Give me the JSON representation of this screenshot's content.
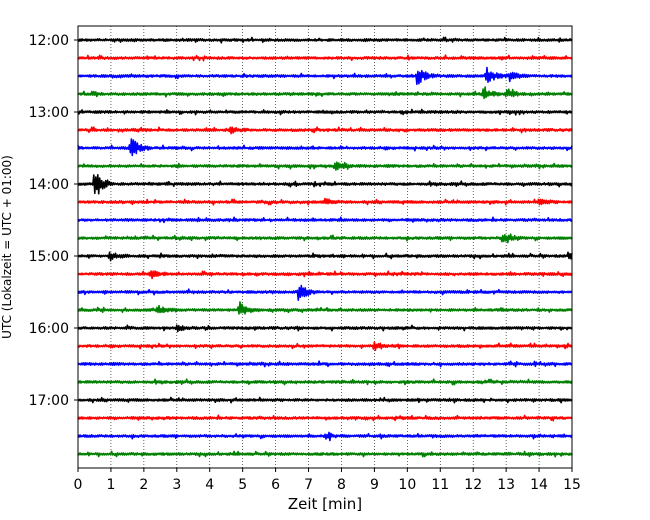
{
  "chart_data": {
    "type": "line",
    "title": "",
    "xlabel": "Zeit  [min]",
    "ylabel": "UTC (Lokalzeit = UTC + 01:00)",
    "xlim": [
      0,
      15
    ],
    "xticks": [
      0,
      1,
      2,
      3,
      4,
      5,
      6,
      7,
      8,
      9,
      10,
      11,
      12,
      13,
      14,
      15
    ],
    "ytick_labels": [
      "12:00",
      "13:00",
      "14:00",
      "15:00",
      "16:00",
      "17:00"
    ],
    "grid": "vertical dotted lines at each minute",
    "trace_interval_min": 15,
    "trace_colors": [
      "#000000",
      "#ff0000",
      "#0000ff",
      "#008000"
    ],
    "traces": [
      {
        "start": "12:00",
        "events": []
      },
      {
        "start": "12:15",
        "events": []
      },
      {
        "start": "12:30",
        "events": [
          {
            "t": 10.3,
            "amp": 1.0
          },
          {
            "t": 12.4,
            "amp": 1.4
          },
          {
            "t": 13.1,
            "amp": 0.5
          }
        ]
      },
      {
        "start": "12:45",
        "events": [
          {
            "t": 12.3,
            "amp": 0.8
          },
          {
            "t": 13.0,
            "amp": 0.6
          }
        ]
      },
      {
        "start": "13:00",
        "events": []
      },
      {
        "start": "13:15",
        "events": [
          {
            "t": 4.6,
            "amp": 0.4
          }
        ]
      },
      {
        "start": "13:30",
        "events": [
          {
            "t": 1.6,
            "amp": 1.2
          }
        ]
      },
      {
        "start": "13:45",
        "events": [
          {
            "t": 7.8,
            "amp": 0.5
          }
        ]
      },
      {
        "start": "14:00",
        "events": [
          {
            "t": 0.5,
            "amp": 1.5
          }
        ]
      },
      {
        "start": "14:15",
        "events": [
          {
            "t": 7.5,
            "amp": 0.4
          },
          {
            "t": 14.0,
            "amp": 0.4
          }
        ]
      },
      {
        "start": "14:30",
        "events": []
      },
      {
        "start": "14:45",
        "events": [
          {
            "t": 12.9,
            "amp": 0.8
          }
        ]
      },
      {
        "start": "15:00",
        "events": [
          {
            "t": 1.0,
            "amp": 0.5
          },
          {
            "t": 14.9,
            "amp": 0.5
          }
        ]
      },
      {
        "start": "15:15",
        "events": [
          {
            "t": 2.2,
            "amp": 0.7
          }
        ]
      },
      {
        "start": "15:30",
        "events": [
          {
            "t": 6.7,
            "amp": 1.0
          }
        ]
      },
      {
        "start": "15:45",
        "events": [
          {
            "t": 2.4,
            "amp": 0.5
          },
          {
            "t": 4.9,
            "amp": 1.0
          }
        ]
      },
      {
        "start": "16:00",
        "events": [
          {
            "t": 3.0,
            "amp": 0.4
          }
        ]
      },
      {
        "start": "16:15",
        "events": [
          {
            "t": 9.0,
            "amp": 0.5
          }
        ]
      },
      {
        "start": "16:30",
        "events": []
      },
      {
        "start": "16:45",
        "events": []
      },
      {
        "start": "17:00",
        "events": []
      },
      {
        "start": "17:15",
        "events": []
      },
      {
        "start": "17:30",
        "events": [
          {
            "t": 7.5,
            "amp": 0.4
          }
        ]
      },
      {
        "start": "17:45",
        "events": []
      }
    ]
  }
}
